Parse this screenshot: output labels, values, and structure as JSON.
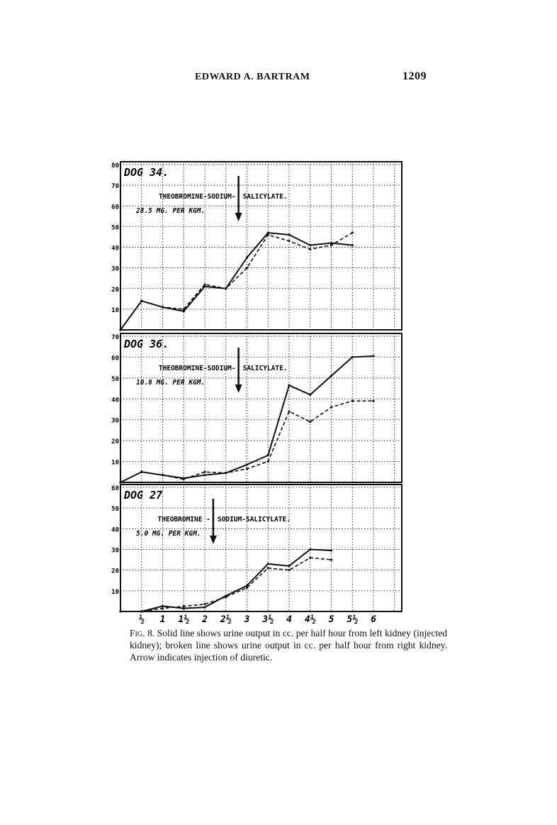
{
  "header": {
    "author": "EDWARD A. BARTRAM",
    "page_number": "1209"
  },
  "caption": {
    "figure_label": "Fig. 8.",
    "text": "Solid line shows urine output in cc. per half hour from left kidney (injected kidney); broken line shows urine output in cc. per half hour from right kidney. Arrow indicates injection of diuretic."
  },
  "chart_data": [
    {
      "type": "line",
      "title": "DOG 34.",
      "annotation_line1": "THEOBROMINE-SODIUM-",
      "annotation_line1b": "SALICYLATE.",
      "annotation_line2": "28.5 MG. PER KGM.",
      "injection_time": 2.8,
      "ylim": [
        0,
        80
      ],
      "yticks": [
        10,
        20,
        30,
        40,
        50,
        60,
        70,
        80
      ],
      "x": [
        0,
        0.5,
        1,
        1.5,
        2,
        2.5,
        3,
        3.5,
        4,
        4.5,
        5,
        5.5
      ],
      "series": [
        {
          "name": "left kidney (solid)",
          "style": "solid",
          "values": [
            0,
            14,
            11,
            9,
            21,
            20,
            35,
            47,
            46,
            41,
            42,
            41
          ]
        },
        {
          "name": "right kidney (broken)",
          "style": "dashed",
          "values": [
            0,
            14,
            11,
            10,
            22,
            20,
            30,
            46,
            43,
            39,
            41,
            47
          ]
        }
      ]
    },
    {
      "type": "line",
      "title": "DOG 36.",
      "annotation_line1": "THEOBROMINE-SODIUM-",
      "annotation_line1b": "SALICYLATE.",
      "annotation_line2": "10.8 MG. PER KGM.",
      "injection_time": 2.8,
      "ylim": [
        0,
        70
      ],
      "yticks": [
        10,
        20,
        30,
        40,
        50,
        60,
        70
      ],
      "x": [
        0,
        0.5,
        1,
        1.5,
        2,
        2.5,
        3,
        3.5,
        4,
        4.5,
        5,
        5.5,
        6
      ],
      "series": [
        {
          "name": "left kidney (solid)",
          "style": "solid",
          "values": [
            0,
            5,
            3.5,
            2,
            3.5,
            4.5,
            8.5,
            13,
            46.5,
            42,
            51,
            60,
            60.5
          ]
        },
        {
          "name": "right kidney (broken)",
          "style": "dashed",
          "values": [
            0,
            5,
            3.5,
            1.5,
            5,
            4.5,
            6.5,
            10,
            34,
            29,
            36,
            39,
            39
          ]
        }
      ]
    },
    {
      "type": "line",
      "title": "DOG 27",
      "annotation_line1": "THEOBROMINE -",
      "annotation_line1b": "SODIUM-SALICYLATE.",
      "annotation_line2": "5.0 MG. PER KGM.",
      "injection_time": 2.2,
      "ylim": [
        0,
        60
      ],
      "yticks": [
        10,
        20,
        30,
        40,
        50,
        60
      ],
      "x": [
        0,
        0.5,
        1,
        1.5,
        2,
        2.5,
        3,
        3.5,
        4,
        4.5,
        5
      ],
      "series": [
        {
          "name": "left kidney (solid)",
          "style": "solid",
          "values": [
            0,
            0,
            2.6,
            1.5,
            2,
            7.6,
            12.5,
            23,
            22,
            30,
            29.5
          ]
        },
        {
          "name": "right kidney (broken)",
          "style": "dashed",
          "values": [
            0,
            0,
            1.5,
            2.5,
            3.5,
            7,
            11.5,
            21,
            20,
            26,
            25
          ]
        }
      ]
    }
  ],
  "x_axis": {
    "ticks": [
      0.5,
      1,
      1.5,
      2,
      2.5,
      3,
      3.5,
      4,
      4.5,
      5,
      5.5,
      6
    ],
    "tick_labels": [
      "½",
      "1",
      "1½",
      "2",
      "2½",
      "3",
      "3½",
      "4",
      "4½",
      "5",
      "5½",
      "6"
    ]
  }
}
